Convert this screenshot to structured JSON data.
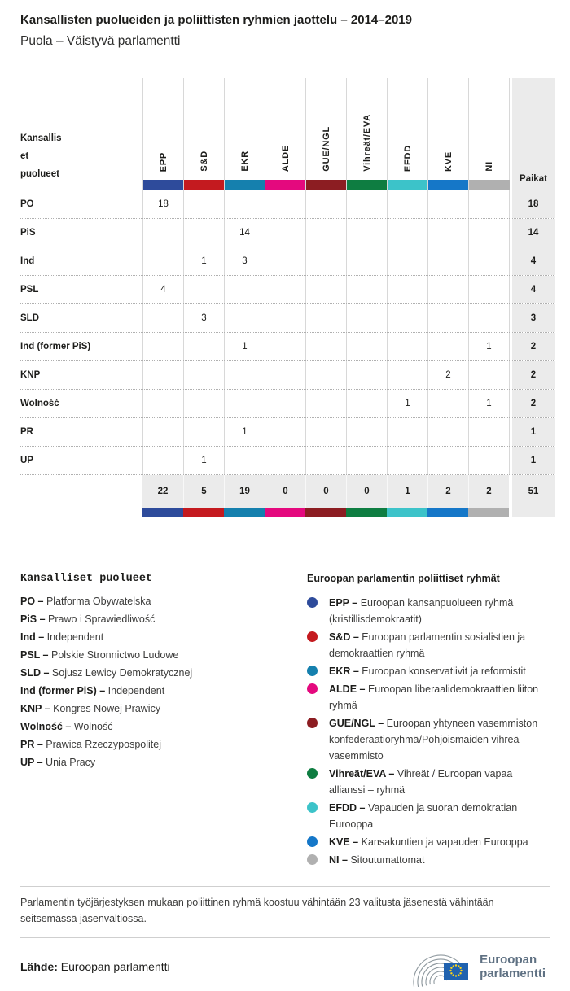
{
  "header": {
    "title": "Kansallisten puolueiden ja poliittisten ryhmien jaottelu – 2014–2019",
    "subtitle": "Puola – Väistyvä parlamentti"
  },
  "chart_data": {
    "type": "table",
    "row_header": "Kansalliset puolueet",
    "row_header_lines": [
      "Kansallis",
      "et",
      "puolueet"
    ],
    "seats_label": "Paikat",
    "groups": [
      {
        "id": "EPP",
        "color": "#2e4b9b"
      },
      {
        "id": "S&D",
        "color": "#c41a1f"
      },
      {
        "id": "EKR",
        "color": "#1580ae"
      },
      {
        "id": "ALDE",
        "color": "#e4097e"
      },
      {
        "id": "GUE/NGL",
        "color": "#8c1d22"
      },
      {
        "id": "Vihreät/EVA",
        "color": "#0e7d41"
      },
      {
        "id": "EFDD",
        "color": "#3cc3c9"
      },
      {
        "id": "KVE",
        "color": "#1577c8"
      },
      {
        "id": "NI",
        "color": "#b0b0b0"
      }
    ],
    "rows": [
      {
        "party": "PO",
        "values": [
          "18",
          "",
          "",
          "",
          "",
          "",
          "",
          "",
          ""
        ],
        "total": "18"
      },
      {
        "party": "PiS",
        "values": [
          "",
          "",
          "14",
          "",
          "",
          "",
          "",
          "",
          ""
        ],
        "total": "14"
      },
      {
        "party": "Ind",
        "values": [
          "",
          "1",
          "3",
          "",
          "",
          "",
          "",
          "",
          ""
        ],
        "total": "4"
      },
      {
        "party": "PSL",
        "values": [
          "4",
          "",
          "",
          "",
          "",
          "",
          "",
          "",
          ""
        ],
        "total": "4"
      },
      {
        "party": "SLD",
        "values": [
          "",
          "3",
          "",
          "",
          "",
          "",
          "",
          "",
          ""
        ],
        "total": "3"
      },
      {
        "party": "Ind (former PiS)",
        "values": [
          "",
          "",
          "1",
          "",
          "",
          "",
          "",
          "",
          "1"
        ],
        "total": "2"
      },
      {
        "party": "KNP",
        "values": [
          "",
          "",
          "",
          "",
          "",
          "",
          "",
          "2",
          ""
        ],
        "total": "2"
      },
      {
        "party": "Wolność",
        "values": [
          "",
          "",
          "",
          "",
          "",
          "",
          "1",
          "",
          "1"
        ],
        "total": "2"
      },
      {
        "party": "PR",
        "values": [
          "",
          "",
          "1",
          "",
          "",
          "",
          "",
          "",
          ""
        ],
        "total": "1"
      },
      {
        "party": "UP",
        "values": [
          "",
          "1",
          "",
          "",
          "",
          "",
          "",
          "",
          ""
        ],
        "total": "1"
      }
    ],
    "totals": [
      "22",
      "5",
      "19",
      "0",
      "0",
      "0",
      "1",
      "2",
      "2"
    ],
    "grand_total": "51"
  },
  "party_legend": {
    "heading": "Kansalliset puolueet",
    "items": [
      {
        "abbr": "PO –",
        "name": "Platforma Obywatelska"
      },
      {
        "abbr": "PiS –",
        "name": "Prawo i Sprawiedliwość"
      },
      {
        "abbr": "Ind –",
        "name": "Independent"
      },
      {
        "abbr": "PSL –",
        "name": "Polskie Stronnictwo Ludowe"
      },
      {
        "abbr": "SLD –",
        "name": "Sojusz Lewicy Demokratycznej"
      },
      {
        "abbr": "Ind (former PiS) –",
        "name": "Independent"
      },
      {
        "abbr": "KNP –",
        "name": "Kongres Nowej Prawicy"
      },
      {
        "abbr": "Wolność –",
        "name": "Wolność"
      },
      {
        "abbr": "PR –",
        "name": "Prawica Rzeczypospolitej"
      },
      {
        "abbr": "UP –",
        "name": "Unia Pracy"
      }
    ]
  },
  "group_legend": {
    "heading": "Euroopan parlamentin poliittiset ryhmät",
    "items": [
      {
        "abbr": "EPP –",
        "desc": "Euroopan kansanpuolueen ryhmä (kristillisdemokraatit)",
        "color": "#2e4b9b"
      },
      {
        "abbr": "S&D –",
        "desc": "Euroopan parlamentin sosialistien ja demokraattien ryhmä",
        "color": "#c41a1f"
      },
      {
        "abbr": "EKR –",
        "desc": "Euroopan konservatiivit ja reformistit",
        "color": "#1580ae"
      },
      {
        "abbr": "ALDE –",
        "desc": "Euroopan liberaalidemokraattien liiton ryhmä",
        "color": "#e4097e"
      },
      {
        "abbr": "GUE/NGL –",
        "desc": "Euroopan yhtyneen vasemmiston konfederaatioryhmä/Pohjoismaiden vihreä vasemmisto",
        "color": "#8c1d22"
      },
      {
        "abbr": "Vihreät/EVA –",
        "desc": "Vihreät / Euroopan vapaa allianssi – ryhmä",
        "color": "#0e7d41"
      },
      {
        "abbr": "EFDD –",
        "desc": "Vapauden ja suoran demokratian Eurooppa",
        "color": "#3cc3c9"
      },
      {
        "abbr": "KVE –",
        "desc": "Kansakuntien ja vapauden Eurooppa",
        "color": "#1577c8"
      },
      {
        "abbr": "NI –",
        "desc": "Sitoutumattomat",
        "color": "#b0b0b0"
      }
    ]
  },
  "note": "Parlamentin työjärjestyksen mukaan poliittinen ryhmä koostuu vähintään 23 valitusta jäsenestä vähintään seitsemässä jäsenvaltiossa.",
  "source": {
    "label": "Lähde:",
    "value": "Euroopan parlamentti"
  },
  "logo": {
    "line1": "Euroopan",
    "line2": "parlamentti"
  }
}
